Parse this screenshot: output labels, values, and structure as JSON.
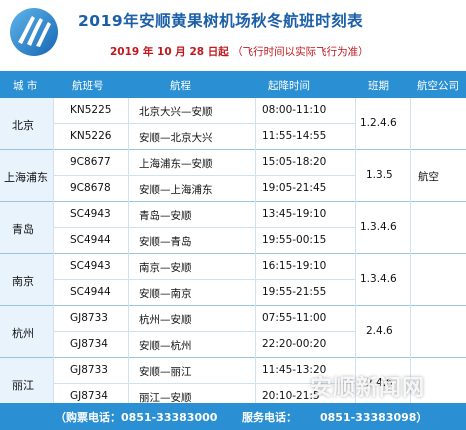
{
  "header": {
    "title": "2019年安顺黄果树机场秋冬航班时刻表",
    "subtitle_date": "2019 年 10 月 28 日起",
    "subtitle_note": "（飞行时间以实际飞行为准）"
  },
  "columns": {
    "city": "城 市",
    "flight": "航班号",
    "route": "航程",
    "time": "起降时间",
    "days": "班期",
    "airline": "航空公司"
  },
  "groups": [
    {
      "city": "北京",
      "days": "1.2.4.6",
      "airline": "",
      "flights": [
        {
          "no": "KN5225",
          "route": "北京大兴—安顺",
          "time": "08:00-11:10"
        },
        {
          "no": "KN5226",
          "route": "安顺—北京大兴",
          "time": "11:55-14:55"
        }
      ]
    },
    {
      "city": "上海浦东",
      "days": "1.3.5",
      "airline": "航空",
      "flights": [
        {
          "no": "9C8677",
          "route": "上海浦东—安顺",
          "time": "15:05-18:20"
        },
        {
          "no": "9C8678",
          "route": "安顺—上海浦东",
          "time": "19:05-21:45"
        }
      ]
    },
    {
      "city": "青岛",
      "days": "1.3.4.6",
      "airline": "",
      "flights": [
        {
          "no": "SC4943",
          "route": "青岛—安顺",
          "time": "13:45-19:10"
        },
        {
          "no": "SC4944",
          "route": "安顺—青岛",
          "time": "19:55-00:15"
        }
      ]
    },
    {
      "city": "南京",
      "days": "1.3.4.6",
      "airline": "",
      "flights": [
        {
          "no": "SC4943",
          "route": "南京—安顺",
          "time": "16:15-19:10"
        },
        {
          "no": "SC4944",
          "route": "安顺—南京",
          "time": "19:55-21:55"
        }
      ]
    },
    {
      "city": "杭州",
      "days": "2.4.6",
      "airline": "",
      "flights": [
        {
          "no": "GJ8733",
          "route": "杭州—安顺",
          "time": "07:55-11:00"
        },
        {
          "no": "GJ8734",
          "route": "安顺—杭州",
          "time": "22:20-00:20"
        }
      ]
    },
    {
      "city": "丽江",
      "days": "2.4.6",
      "airline": "",
      "flights": [
        {
          "no": "GJ8733",
          "route": "安顺—丽江",
          "time": "11:45-13:20"
        },
        {
          "no": "GJ8734",
          "route": "丽江—安顺",
          "time": "20:10-21:5"
        }
      ]
    }
  ],
  "footer": {
    "booking": "（购票电话：0851-33383000",
    "service": "服务电话：",
    "service_phone": "0851-33383098）"
  },
  "watermark": "安顺新闻网",
  "colors": {
    "brand": "#2a8fd3",
    "title": "#1a5fa8",
    "note": "#c0181d"
  }
}
